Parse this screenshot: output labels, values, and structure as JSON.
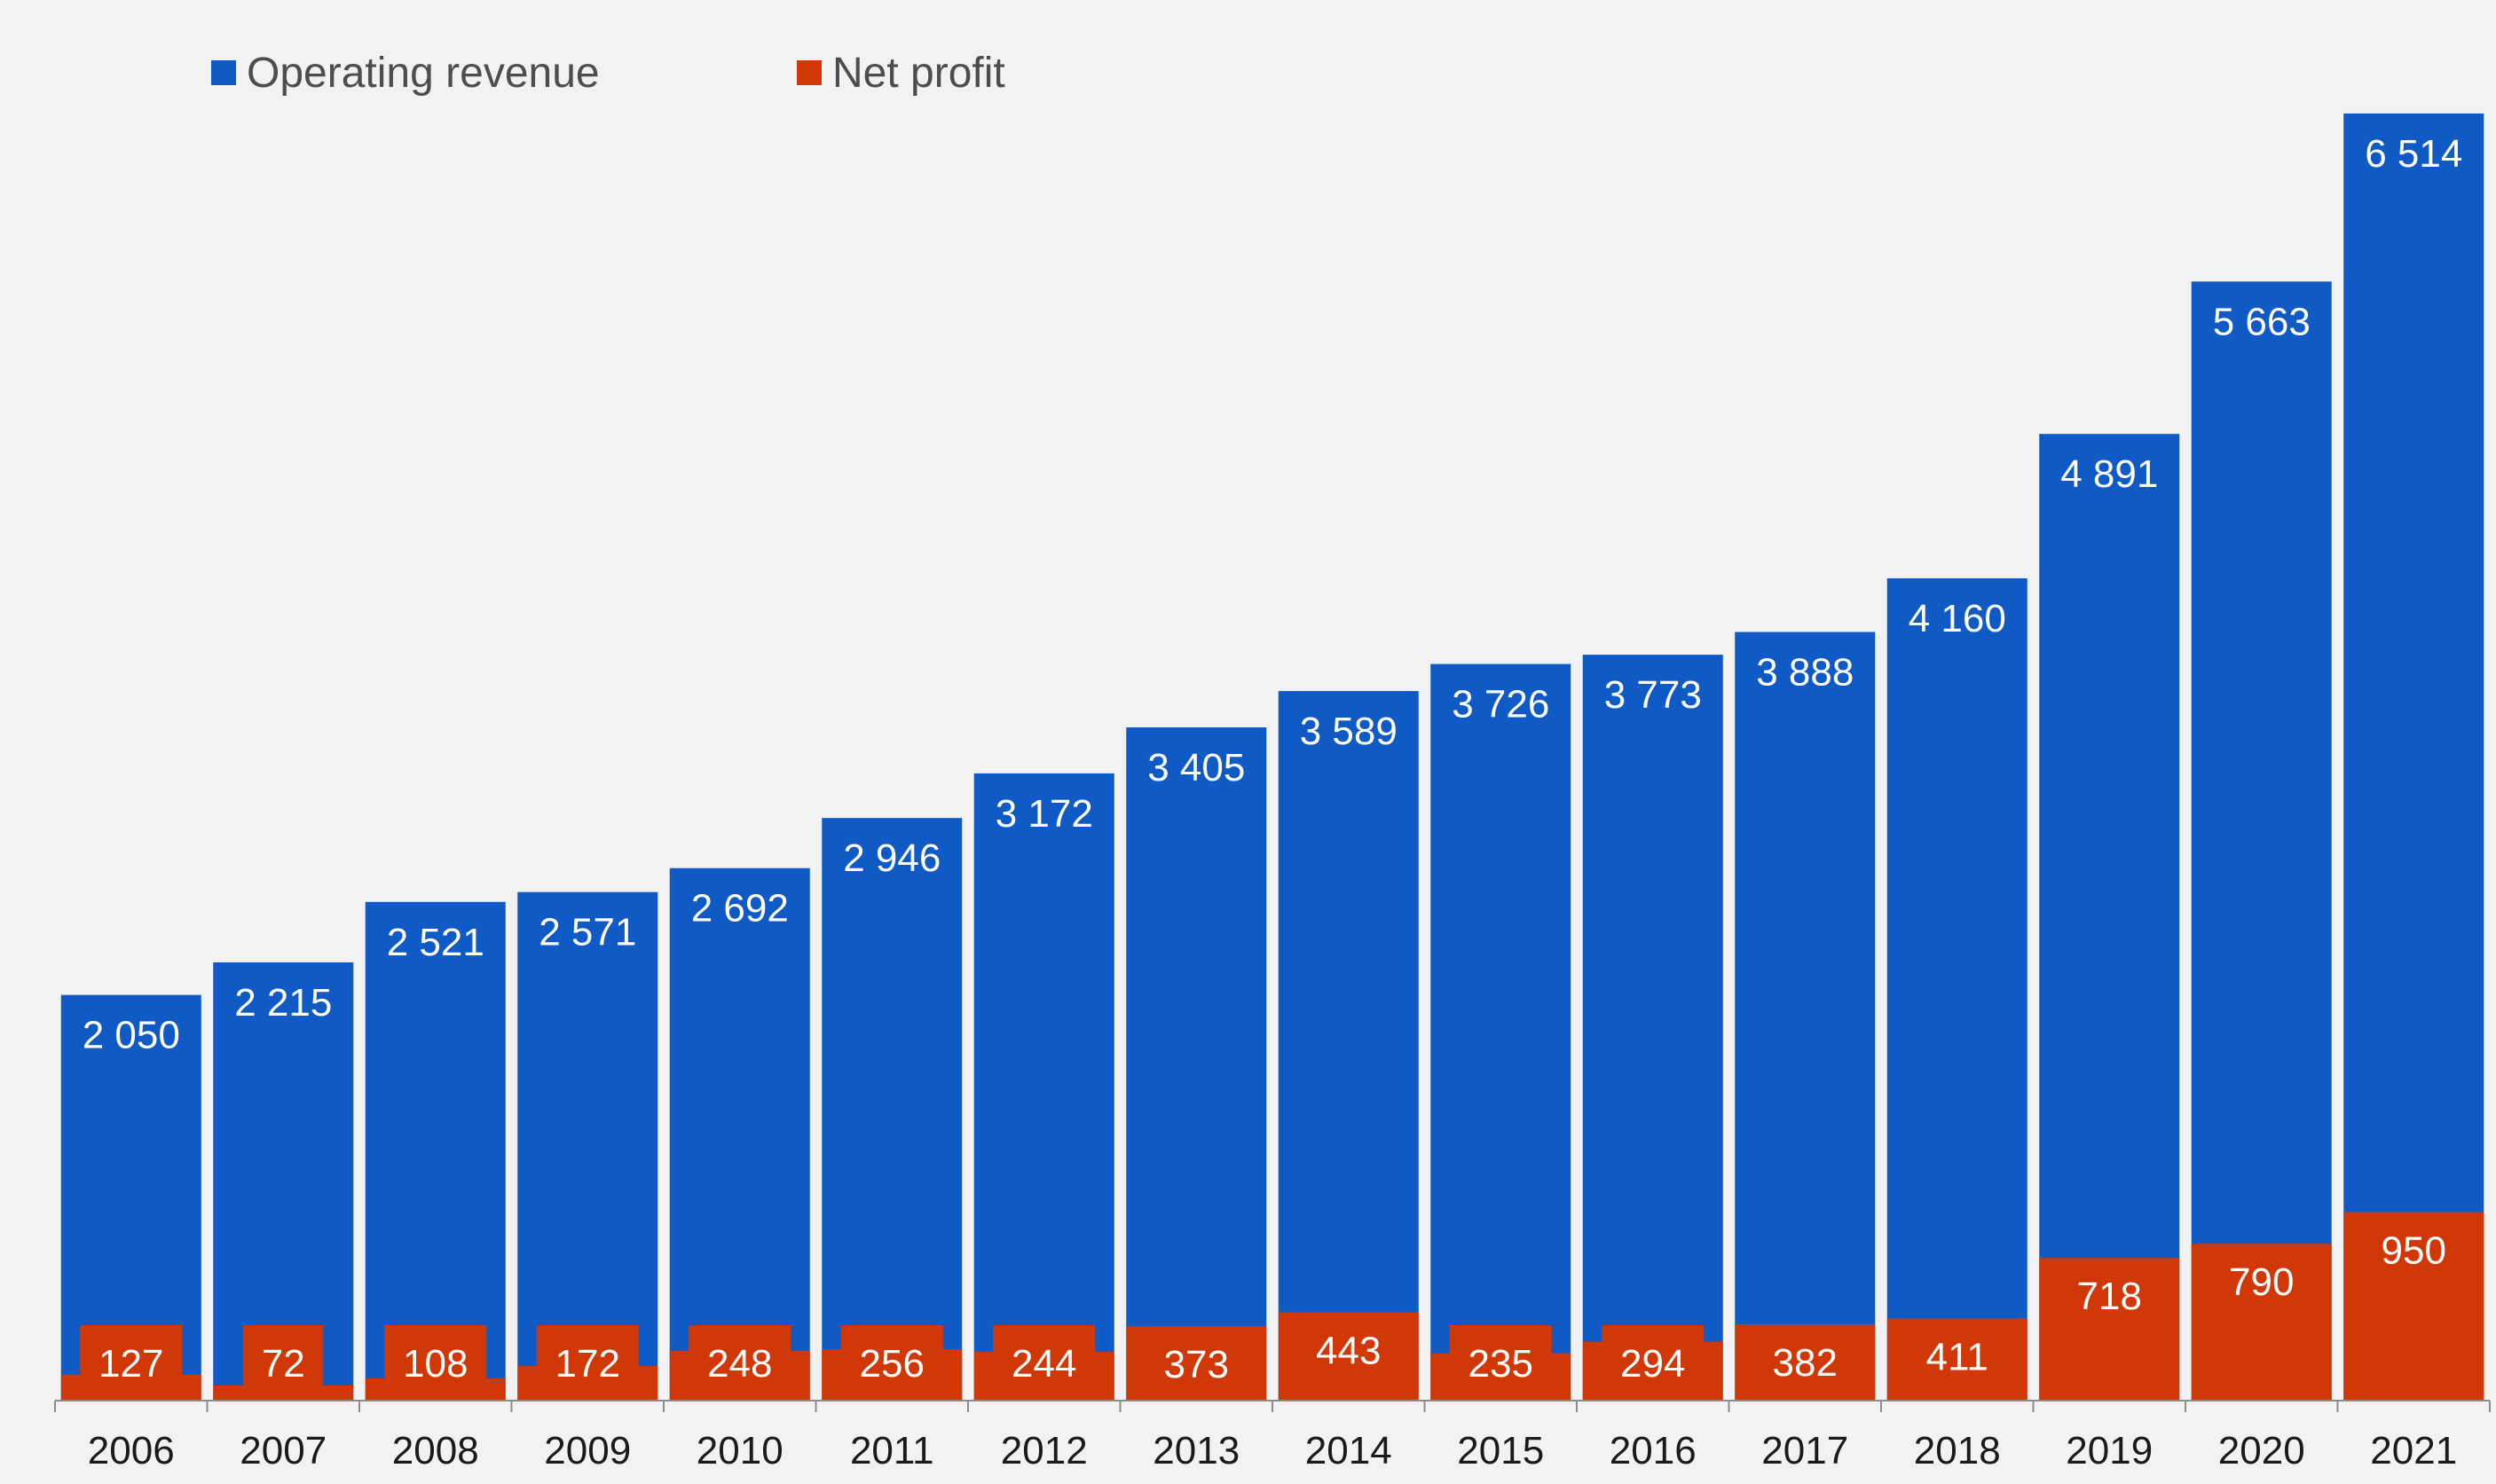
{
  "chart_data": {
    "type": "bar",
    "categories": [
      "2006",
      "2007",
      "2008",
      "2009",
      "2010",
      "2011",
      "2012",
      "2013",
      "2014",
      "2015",
      "2016",
      "2017",
      "2018",
      "2019",
      "2020",
      "2021"
    ],
    "series": [
      {
        "name": "Operating revenue",
        "color": "#0f5ac4",
        "values": [
          2050,
          2215,
          2521,
          2571,
          2692,
          2946,
          3172,
          3405,
          3589,
          3726,
          3773,
          3888,
          4160,
          4891,
          5663,
          6514
        ],
        "labels": [
          "2 050",
          "2 215",
          "2 521",
          "2 571",
          "2 692",
          "2 946",
          "3 172",
          "3 405",
          "3 589",
          "3 726",
          "3 773",
          "3 888",
          "4 160",
          "4 891",
          "5 663",
          "6 514"
        ]
      },
      {
        "name": "Net profit",
        "color": "#d13808",
        "values": [
          127,
          72,
          108,
          172,
          248,
          256,
          244,
          373,
          443,
          235,
          294,
          382,
          411,
          718,
          790,
          950
        ],
        "labels": [
          "127",
          "72",
          "108",
          "172",
          "248",
          "256",
          "244",
          "373",
          "443",
          "235",
          "294",
          "382",
          "411",
          "718",
          "790",
          "950"
        ]
      }
    ],
    "ylim": [
      0,
      6900
    ],
    "grid": false,
    "legend_position": "top-left",
    "overlap": true
  }
}
